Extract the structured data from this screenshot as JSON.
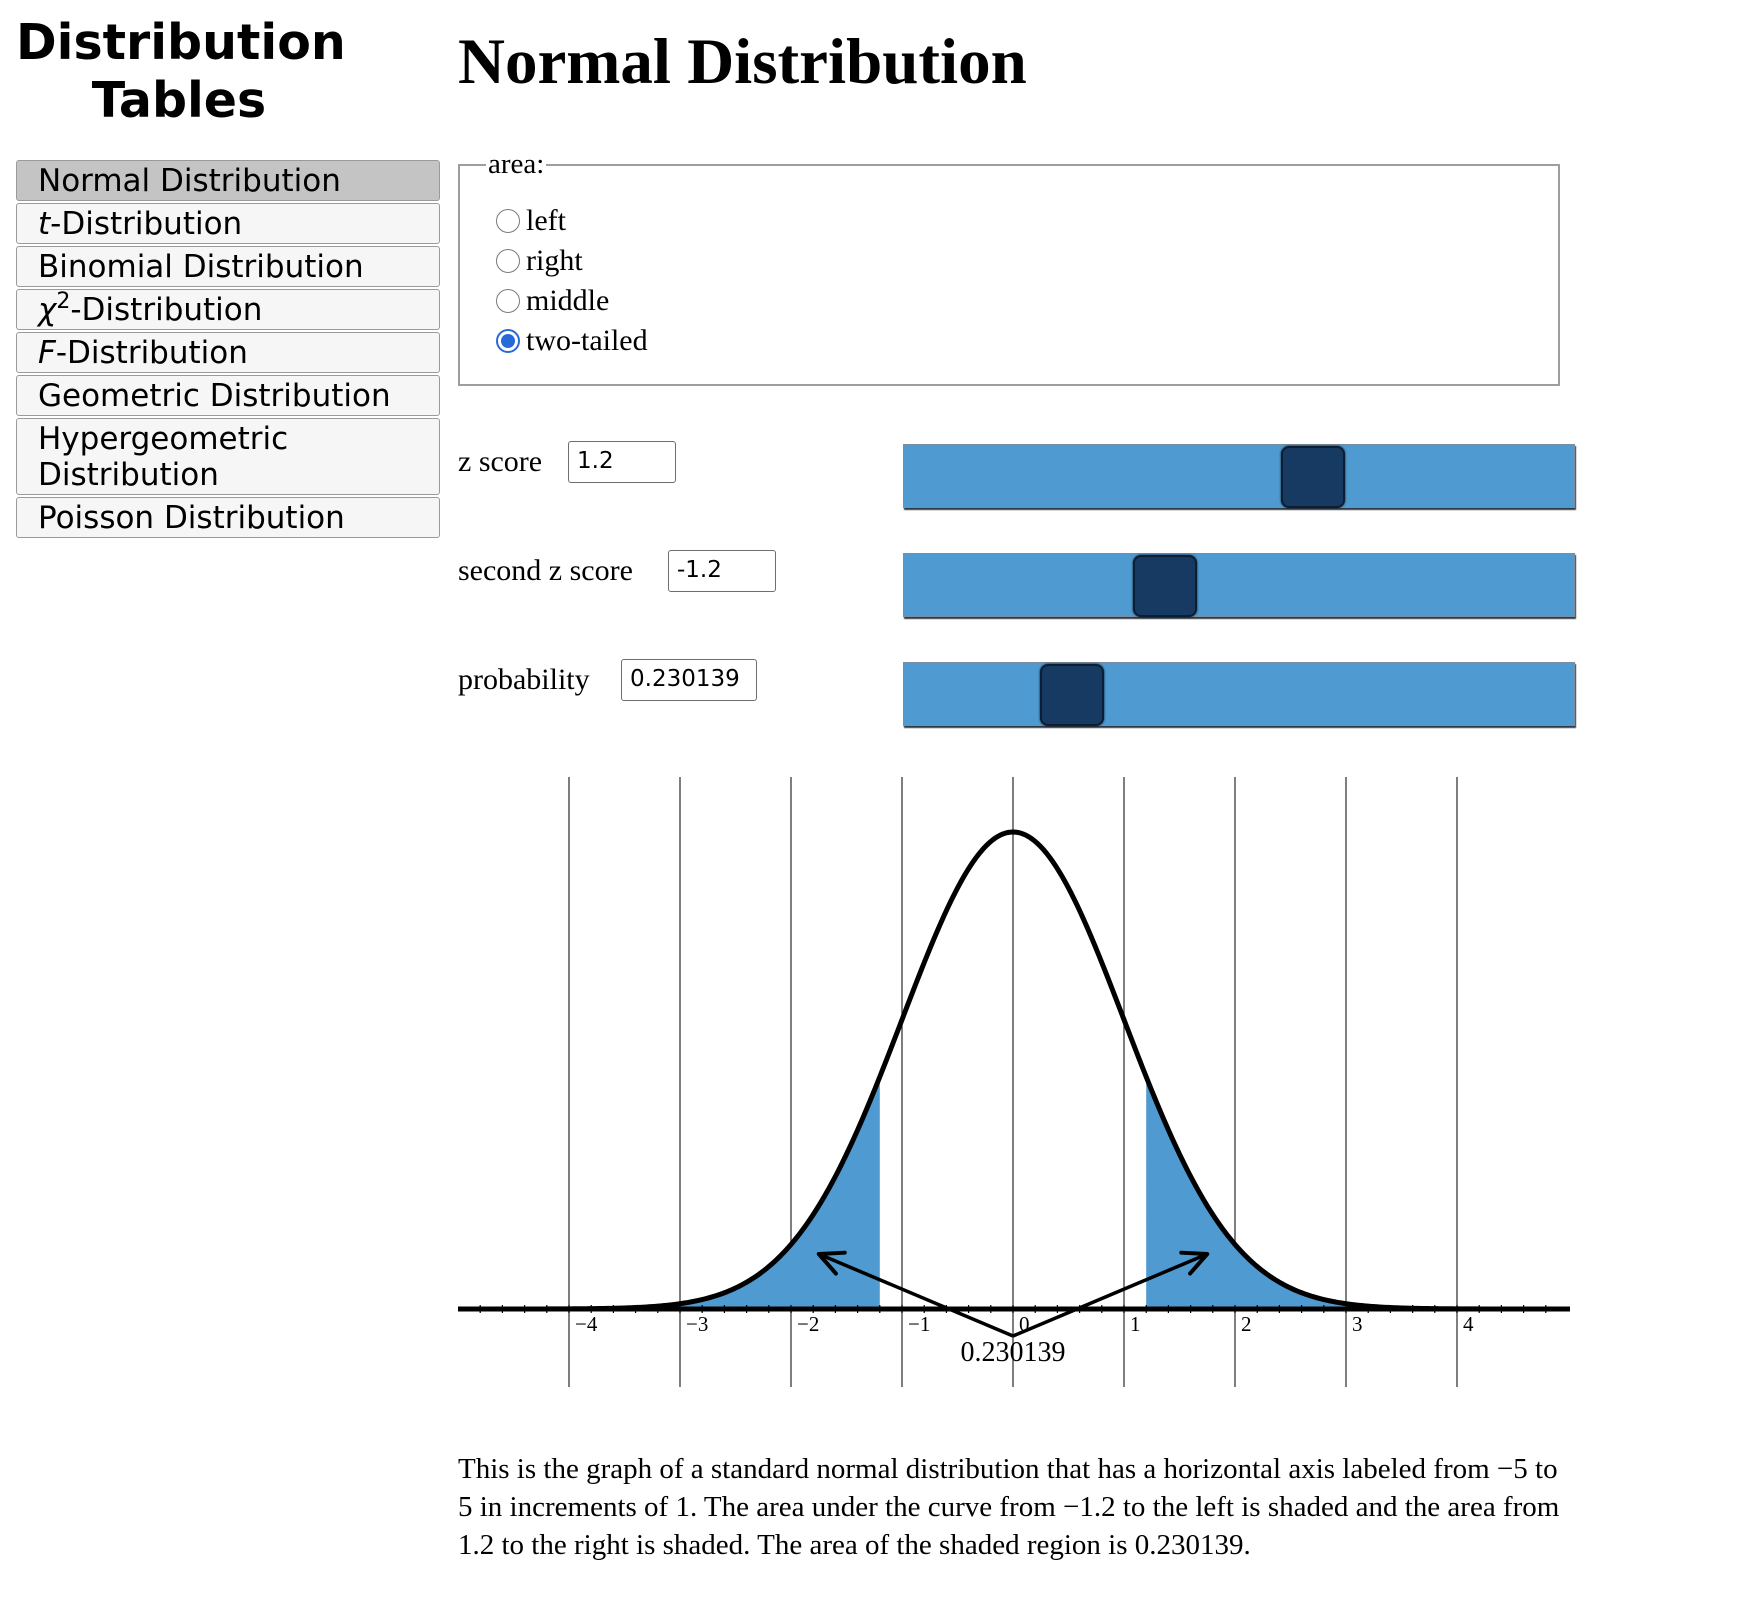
{
  "sidebar": {
    "title": "Distribution Tables",
    "items": [
      {
        "prefix": "",
        "italic": "",
        "sup": "",
        "text": "Normal Distribution",
        "active": true
      },
      {
        "prefix": "",
        "italic": "t",
        "sup": "",
        "text": "-Distribution",
        "active": false
      },
      {
        "prefix": "",
        "italic": "",
        "sup": "",
        "text": "Binomial Distribution",
        "active": false
      },
      {
        "prefix": "",
        "italic": "χ",
        "sup": "2",
        "text": "-Distribution",
        "active": false
      },
      {
        "prefix": "",
        "italic": "F",
        "sup": "",
        "text": "-Distribution",
        "active": false
      },
      {
        "prefix": "",
        "italic": "",
        "sup": "",
        "text": "Geometric Distribution",
        "active": false
      },
      {
        "prefix": "",
        "italic": "",
        "sup": "",
        "text": "Hypergeometric Distribution",
        "active": false
      },
      {
        "prefix": "",
        "italic": "",
        "sup": "",
        "text": "Poisson Distribution",
        "active": false
      }
    ]
  },
  "main": {
    "title": "Normal Distribution",
    "area": {
      "legend": "area:",
      "options": [
        {
          "label": "left",
          "checked": false
        },
        {
          "label": "right",
          "checked": false
        },
        {
          "label": "middle",
          "checked": false
        },
        {
          "label": "two-tailed",
          "checked": true
        }
      ]
    },
    "controls": {
      "z": {
        "label": "z score",
        "value": "1.2",
        "slider_position": 0.61
      },
      "z2": {
        "label": "second z score",
        "value": "-1.2",
        "slider_position": 0.39
      },
      "p": {
        "label": "probability",
        "value": "0.230139",
        "slider_position": 0.25
      }
    },
    "description": "This is the graph of a standard normal distribution that has a horizontal axis labeled from −5 to 5 in increments of 1. The area under the curve from −1.2 to the left is shaded and the area from 1.2 to the right is shaded. The area of the shaded region is 0.230139."
  },
  "colors": {
    "shade": "#4f9bd1",
    "thumb": "#173a62",
    "radio_checked": "#2769d6"
  },
  "chart_data": {
    "type": "area",
    "distribution": "standard normal",
    "xlim": [
      -5,
      5
    ],
    "tick_labels": [
      "−4",
      "−3",
      "−2",
      "−1",
      "0",
      "1",
      "2",
      "3",
      "4"
    ],
    "tick_values": [
      -4,
      -3,
      -2,
      -1,
      0,
      1,
      2,
      3,
      4
    ],
    "shaded_regions": [
      [
        -5,
        -1.2
      ],
      [
        1.2,
        5
      ]
    ],
    "area_label": "0.230139",
    "grid": true
  }
}
